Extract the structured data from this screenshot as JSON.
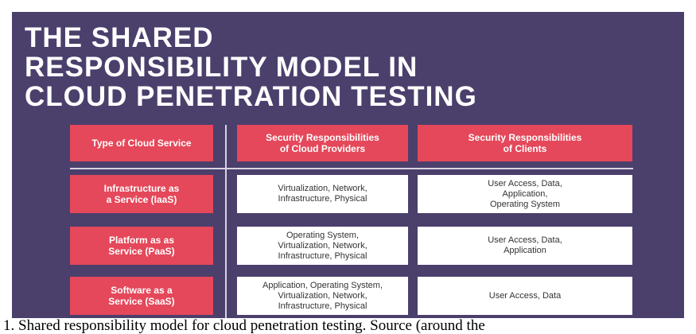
{
  "title": "THE SHARED\nRESPONSIBILITY MODEL IN\nCLOUD PENETRATION TESTING",
  "table": {
    "header": [
      "Type of Cloud Service",
      "Security Responsibilities\nof Cloud Providers",
      "Security Responsibilities\nof Clients"
    ],
    "rows": [
      [
        "Infrastructure as\na Service (IaaS)",
        "Virtualization, Network,\nInfrastructure, Physical",
        "User Access, Data,\nApplication,\nOperating System"
      ],
      [
        "Platform as as\nService (PaaS)",
        "Operating System,\nVirtualization, Network,\nInfrastructure, Physical",
        "User Access, Data,\nApplication"
      ],
      [
        "Software as a\nService (SaaS)",
        "Application, Operating System,\nVirtualization, Network,\nInfrastructure, Physical",
        "User Access, Data"
      ]
    ]
  },
  "caption": "1. Shared responsibility model for cloud penetration testing. Source (around the"
}
